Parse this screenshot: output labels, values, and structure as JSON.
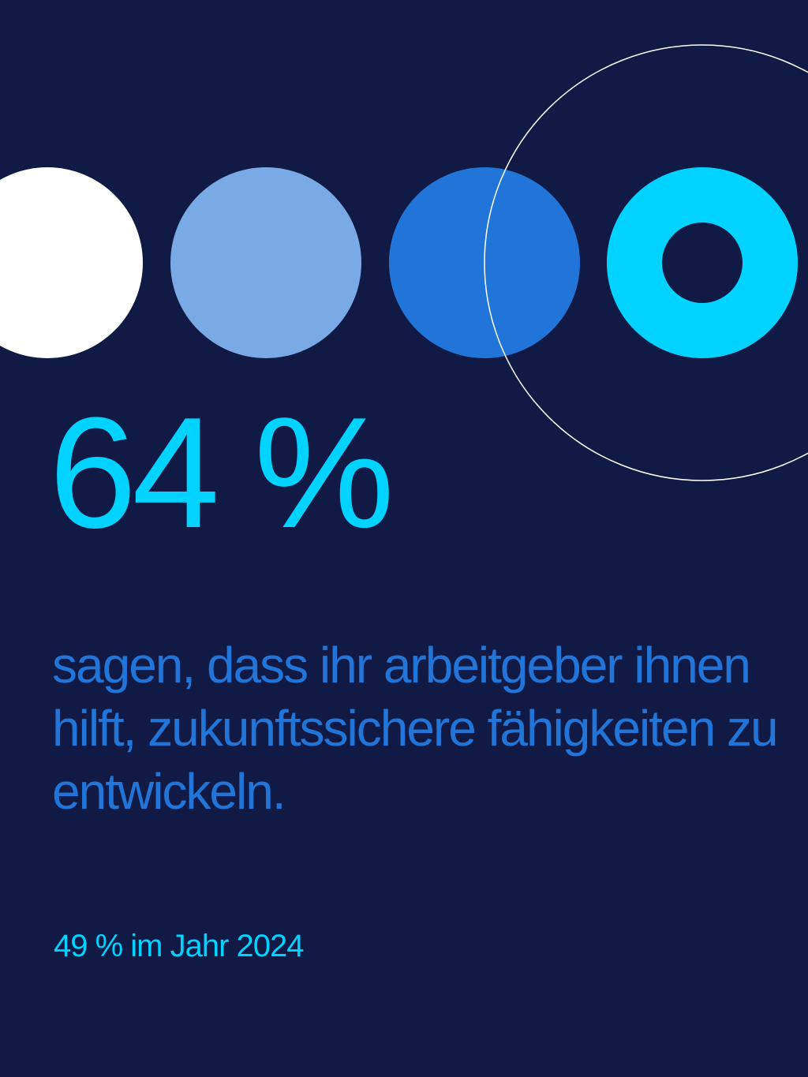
{
  "stat": {
    "value": "64 %",
    "text": "sagen, dass ihr arbeitgeber ihnen hilft, zukunftssichere fähigkeiten zu entwickeln.",
    "previous": "49 % im Jahr 2024"
  },
  "colors": {
    "background": "#111a44",
    "white_dot": "#ffffff",
    "light_blue_dot": "#79aae6",
    "blue_dot": "#2175d9",
    "cyan_ring": "#00d3ff",
    "outline_circle": "#ffffff",
    "value_text": "#00d3ff",
    "statement_text": "#2175d9",
    "footnote_text": "#00d3ff"
  },
  "icons": [
    "white-dot-icon",
    "light-blue-dot-icon",
    "blue-dot-icon",
    "cyan-ring-icon",
    "outline-circle-icon"
  ]
}
